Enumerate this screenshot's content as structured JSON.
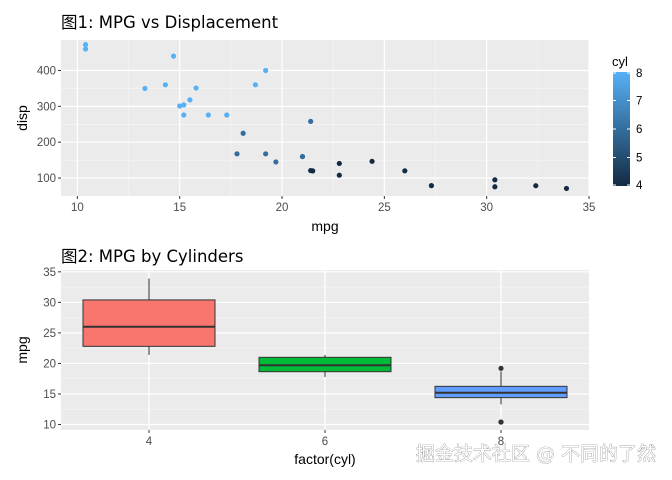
{
  "chart_data": [
    {
      "type": "scatter",
      "title": "图1: MPG vs Displacement",
      "xlabel": "mpg",
      "ylabel": "disp",
      "xlim": [
        9.2,
        35.0
      ],
      "ylim": [
        50,
        485
      ],
      "x_ticks": [
        10,
        15,
        20,
        25,
        30,
        35
      ],
      "y_ticks": [
        100,
        200,
        300,
        400
      ],
      "grid": true,
      "legend": {
        "title": "cyl",
        "position": "right",
        "type": "colorbar",
        "range": [
          4,
          8
        ],
        "ticks": [
          4,
          5,
          6,
          7,
          8
        ],
        "color_low": "#132B43",
        "color_high": "#56B1F7"
      },
      "points": [
        {
          "x": 21.0,
          "y": 160,
          "cyl": 6
        },
        {
          "x": 21.0,
          "y": 160,
          "cyl": 6
        },
        {
          "x": 22.8,
          "y": 108,
          "cyl": 4
        },
        {
          "x": 21.4,
          "y": 258,
          "cyl": 6
        },
        {
          "x": 18.7,
          "y": 360,
          "cyl": 8
        },
        {
          "x": 18.1,
          "y": 225,
          "cyl": 6
        },
        {
          "x": 14.3,
          "y": 360,
          "cyl": 8
        },
        {
          "x": 24.4,
          "y": 146.7,
          "cyl": 4
        },
        {
          "x": 22.8,
          "y": 140.8,
          "cyl": 4
        },
        {
          "x": 19.2,
          "y": 167.6,
          "cyl": 6
        },
        {
          "x": 17.8,
          "y": 167.6,
          "cyl": 6
        },
        {
          "x": 16.4,
          "y": 275.8,
          "cyl": 8
        },
        {
          "x": 17.3,
          "y": 275.8,
          "cyl": 8
        },
        {
          "x": 15.2,
          "y": 275.8,
          "cyl": 8
        },
        {
          "x": 10.4,
          "y": 472,
          "cyl": 8
        },
        {
          "x": 10.4,
          "y": 460,
          "cyl": 8
        },
        {
          "x": 14.7,
          "y": 440,
          "cyl": 8
        },
        {
          "x": 32.4,
          "y": 78.7,
          "cyl": 4
        },
        {
          "x": 30.4,
          "y": 75.7,
          "cyl": 4
        },
        {
          "x": 33.9,
          "y": 71.1,
          "cyl": 4
        },
        {
          "x": 21.5,
          "y": 120.1,
          "cyl": 4
        },
        {
          "x": 15.5,
          "y": 318,
          "cyl": 8
        },
        {
          "x": 15.2,
          "y": 304,
          "cyl": 8
        },
        {
          "x": 13.3,
          "y": 350,
          "cyl": 8
        },
        {
          "x": 19.2,
          "y": 400,
          "cyl": 8
        },
        {
          "x": 27.3,
          "y": 79,
          "cyl": 4
        },
        {
          "x": 26.0,
          "y": 120.3,
          "cyl": 4
        },
        {
          "x": 30.4,
          "y": 95.1,
          "cyl": 4
        },
        {
          "x": 15.8,
          "y": 351,
          "cyl": 8
        },
        {
          "x": 19.7,
          "y": 145,
          "cyl": 6
        },
        {
          "x": 15.0,
          "y": 301,
          "cyl": 8
        },
        {
          "x": 21.4,
          "y": 121,
          "cyl": 4
        }
      ]
    },
    {
      "type": "box",
      "title": "图2: MPG by Cylinders",
      "xlabel": "factor(cyl)",
      "ylabel": "mpg",
      "ylim": [
        9.1,
        35.3
      ],
      "y_ticks": [
        10,
        15,
        20,
        25,
        30,
        35
      ],
      "grid": true,
      "categories": [
        "4",
        "6",
        "8"
      ],
      "boxes": [
        {
          "category": "4",
          "min": 21.4,
          "q1": 22.8,
          "median": 26.0,
          "q3": 30.4,
          "max": 33.9,
          "outliers": [],
          "fill": "#F8766D"
        },
        {
          "category": "6",
          "min": 17.8,
          "q1": 18.65,
          "median": 19.7,
          "q3": 21.0,
          "max": 21.4,
          "outliers": [],
          "fill": "#00BA38"
        },
        {
          "category": "8",
          "min": 13.3,
          "q1": 14.4,
          "median": 15.2,
          "q3": 16.25,
          "max": 18.7,
          "outliers": [
            10.4,
            10.4,
            19.2
          ],
          "fill": "#619CFF"
        }
      ]
    }
  ],
  "watermark": "掘金技术社区 @ 不同的了然"
}
